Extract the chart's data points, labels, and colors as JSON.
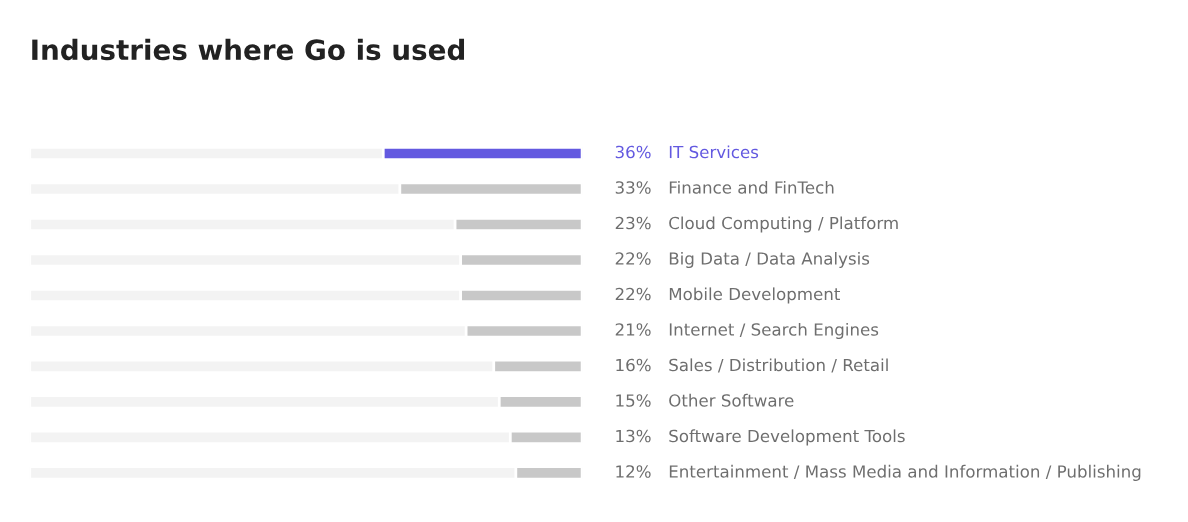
{
  "chart_data": {
    "type": "bar",
    "orientation": "horizontal",
    "title": "Industries where Go is used",
    "categories": [
      "IT Services",
      "Finance and FinTech",
      "Cloud Computing / Platform",
      "Big Data / Data Analysis",
      "Mobile Development",
      "Internet / Search Engines",
      "Sales / Distribution / Retail",
      "Other Software",
      "Software Development Tools",
      "Entertainment / Mass Media and Information / Publishing"
    ],
    "values": [
      36,
      33,
      23,
      22,
      22,
      21,
      16,
      15,
      13,
      12
    ],
    "value_labels": [
      "36%",
      "33%",
      "23%",
      "22%",
      "22%",
      "21%",
      "16%",
      "15%",
      "13%",
      "12%"
    ],
    "colors": [
      "#6359e0",
      "#c8c8c8",
      "#c8c8c8",
      "#c8c8c8",
      "#c8c8c8",
      "#c8c8c8",
      "#c8c8c8",
      "#c8c8c8",
      "#c8c8c8",
      "#c8c8c8"
    ],
    "xlim": [
      100,
      0
    ]
  }
}
